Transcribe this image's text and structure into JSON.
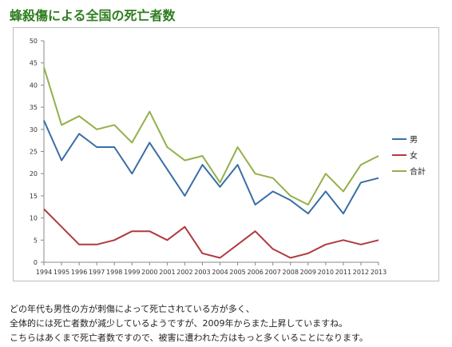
{
  "page": {
    "title": "蜂殺傷による全国の死亡者数",
    "caption": [
      "どの年代も男性の方が刺傷によって死亡されている方が多く、",
      "全体的には死亡者数が減少しているようですが、2009年からまた上昇していますね。",
      "こちらはあくまで死亡者数ですので、被害に遭われた方はもっと多くいることになります。"
    ]
  },
  "chart_data": {
    "type": "line",
    "title": "",
    "xlabel": "",
    "ylabel": "",
    "x": [
      "1994",
      "1995",
      "1996",
      "1997",
      "1998",
      "1999",
      "2000",
      "2001",
      "2002",
      "2003",
      "2004",
      "2005",
      "2006",
      "2007",
      "2008",
      "2009",
      "2010",
      "2011",
      "2012",
      "2013"
    ],
    "ylim": [
      0,
      50
    ],
    "yticks": [
      0,
      5,
      10,
      15,
      20,
      25,
      30,
      35,
      40,
      45,
      50
    ],
    "grid": false,
    "legend_position": "right",
    "series": [
      {
        "name": "男",
        "color": "#3a6ea5",
        "values": [
          32,
          23,
          29,
          26,
          26,
          20,
          27,
          21,
          15,
          22,
          17,
          22,
          13,
          16,
          14,
          11,
          16,
          11,
          18,
          19
        ]
      },
      {
        "name": "女",
        "color": "#b03a3e",
        "values": [
          12,
          8,
          4,
          4,
          5,
          7,
          7,
          5,
          8,
          2,
          1,
          4,
          7,
          3,
          1,
          2,
          4,
          5,
          4,
          5
        ]
      },
      {
        "name": "合計",
        "color": "#93b04a",
        "values": [
          44,
          31,
          33,
          30,
          31,
          27,
          34,
          26,
          23,
          24,
          18,
          26,
          20,
          19,
          15,
          13,
          20,
          16,
          22,
          24
        ]
      }
    ]
  }
}
